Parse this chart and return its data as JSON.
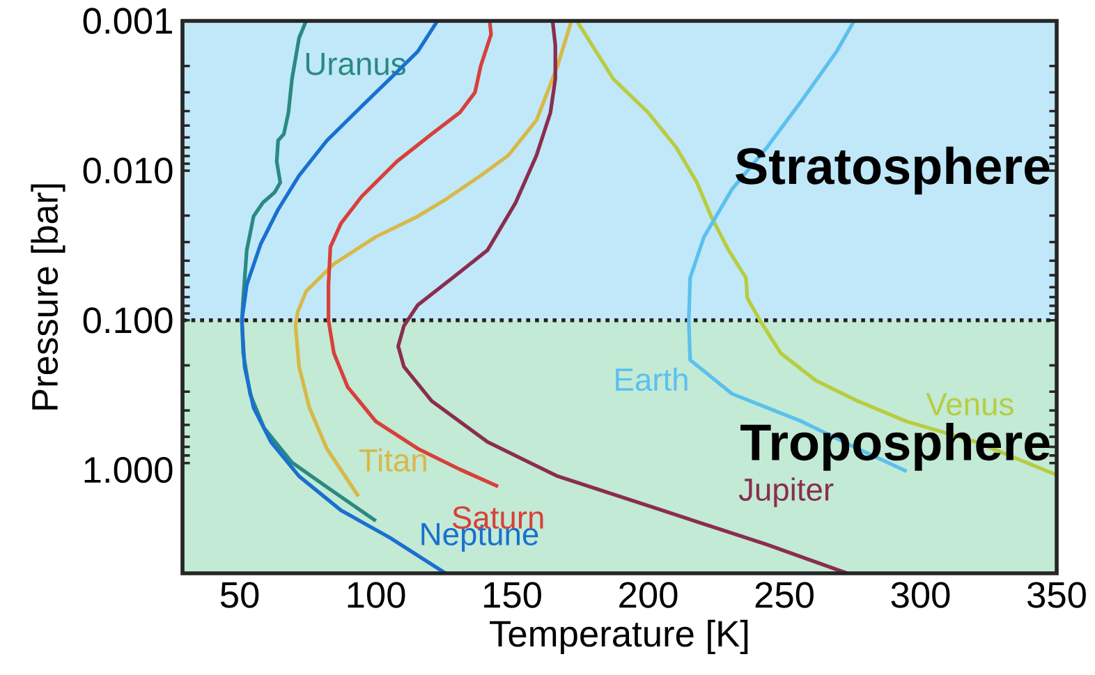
{
  "chart_data": {
    "type": "line",
    "xlabel": "Temperature [K]",
    "ylabel": "Pressure [bar]",
    "log": "y",
    "xlim": [
      29,
      350
    ],
    "ylim": [
      4.9,
      0.001
    ],
    "xticks": [
      50,
      100,
      150,
      200,
      250,
      300,
      350
    ],
    "yticks": [
      {
        "value": 0.001,
        "label": "0.001"
      },
      {
        "value": 0.01,
        "label": "0.010"
      },
      {
        "value": 0.1,
        "label": "0.100"
      },
      {
        "value": 1,
        "label": "1.000"
      }
    ],
    "bands": [
      {
        "axis": "y",
        "from": 0.001,
        "to": 0.1,
        "label": "Stratosphere",
        "color": "#c0e8f8"
      },
      {
        "axis": "y",
        "from": 0.1,
        "to": 4.9,
        "label": "Troposphere",
        "color": "#c2ead5"
      }
    ],
    "ref_lines": [
      {
        "axis": "y",
        "value": 0.1,
        "line_style": "dotted",
        "color": "#222222"
      }
    ],
    "series": [
      {
        "name": "Uranus",
        "color": "#2a8a80",
        "x": [
          74.4,
          71.8,
          69.2,
          67.9,
          66.2,
          64.1,
          63.6,
          64.9,
          62.8,
          58.5,
          55.1,
          52.6,
          51.3,
          50.8,
          51.3,
          53.8,
          59,
          69.2,
          82,
          100
        ],
        "values": [
          0.001,
          0.0013,
          0.00244,
          0.0041,
          0.0057,
          0.0063,
          0.0087,
          0.012,
          0.014,
          0.0164,
          0.0202,
          0.034,
          0.071,
          0.1,
          0.166,
          0.31,
          0.526,
          0.89,
          1.3,
          2.19
        ]
      },
      {
        "name": "Neptune",
        "color": "#1a70d0",
        "x": [
          122.6,
          115.4,
          105.1,
          94.9,
          82,
          71.8,
          64.1,
          57.7,
          52.6,
          50.8,
          51.8,
          55.1,
          61.5,
          71.8,
          87.2,
          105.1,
          125.6
        ],
        "values": [
          0.001,
          0.0016,
          0.00244,
          0.0037,
          0.0063,
          0.0108,
          0.0182,
          0.031,
          0.058,
          0.1,
          0.204,
          0.384,
          0.65,
          1.1,
          1.86,
          2.83,
          4.9
        ]
      },
      {
        "name": "Titan",
        "color": "#d8b848",
        "x": [
          171.8,
          166.7,
          159,
          148.7,
          138.5,
          125.6,
          115.4,
          100,
          84.6,
          74.4,
          71.3,
          70.5,
          71.8,
          75.6,
          82,
          93.6
        ],
        "values": [
          0.001,
          0.002,
          0.0046,
          0.0079,
          0.0108,
          0.0156,
          0.0202,
          0.0277,
          0.042,
          0.064,
          0.088,
          0.109,
          0.204,
          0.384,
          0.72,
          1.5
        ]
      },
      {
        "name": "Saturn",
        "color": "#d8403a",
        "x": [
          141.8,
          142.3,
          138.5,
          136.4,
          130.8,
          120.5,
          107.7,
          94.9,
          87.2,
          83.3,
          82.6,
          82.6,
          84.6,
          89.7,
          100,
          115.4,
          130.8,
          144.9
        ],
        "values": [
          0.001,
          0.00123,
          0.002,
          0.003,
          0.0041,
          0.0057,
          0.0087,
          0.0148,
          0.0225,
          0.0324,
          0.058,
          0.1,
          0.166,
          0.28,
          0.474,
          0.72,
          0.99,
          1.29
        ]
      },
      {
        "name": "Jupiter",
        "color": "#8b2d4f",
        "x": [
          164.9,
          165.9,
          165.9,
          164.1,
          159,
          151.3,
          141,
          128.2,
          115.4,
          110.3,
          108.2,
          110.3,
          120.5,
          141,
          166.7,
          205.1,
          243.6,
          273.1
        ],
        "values": [
          0.001,
          0.00145,
          0.00244,
          0.0041,
          0.0079,
          0.0164,
          0.034,
          0.052,
          0.079,
          0.109,
          0.149,
          0.204,
          0.346,
          0.65,
          1.1,
          1.86,
          3.15,
          4.9
        ]
      },
      {
        "name": "Venus",
        "color": "#b8cc40",
        "x": [
          173.8,
          187.2,
          200,
          210.3,
          217.9,
          223.1,
          229.5,
          235.9,
          236.4,
          241,
          248.7,
          261.5,
          276.9,
          294.9,
          320.5,
          350
        ],
        "values": [
          0.001,
          0.00244,
          0.0041,
          0.007,
          0.012,
          0.0202,
          0.034,
          0.052,
          0.071,
          0.1,
          0.166,
          0.252,
          0.346,
          0.474,
          0.65,
          1.08
        ]
      },
      {
        "name": "Earth",
        "color": "#5cc0ee",
        "x": [
          275.6,
          269.2,
          256.4,
          243.6,
          230.8,
          220.5,
          215.4,
          214.9,
          215.4,
          230.8,
          256.4,
          276.9,
          294.9
        ],
        "values": [
          0.001,
          0.0016,
          0.0034,
          0.007,
          0.0133,
          0.0277,
          0.052,
          0.1,
          0.184,
          0.31,
          0.474,
          0.72,
          1.02
        ]
      }
    ]
  }
}
